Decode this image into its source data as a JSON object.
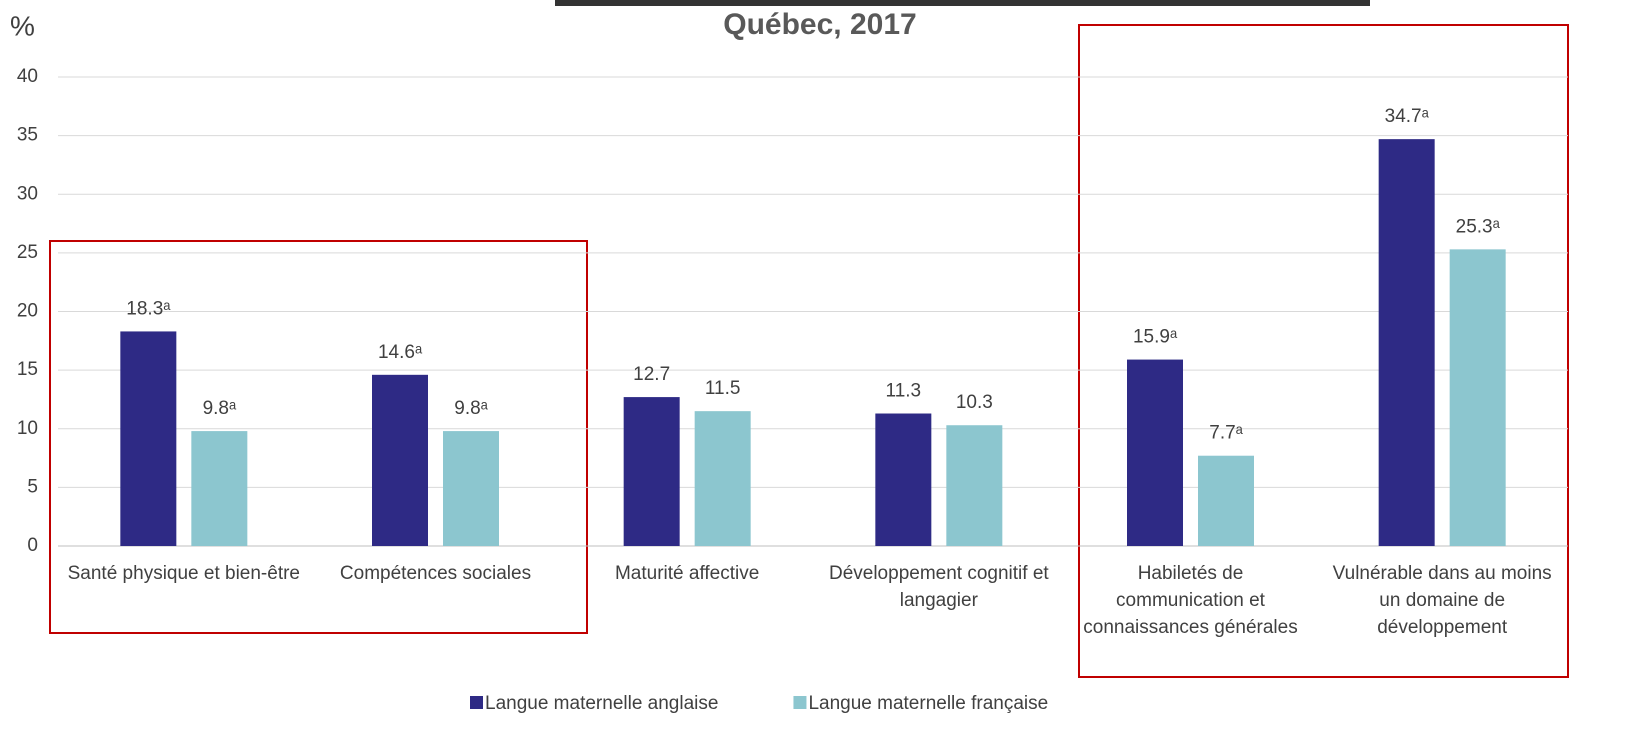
{
  "chart_data": {
    "type": "bar",
    "title": "Québec, 2017",
    "ylabel": "%",
    "categories": [
      "Santé physique et bien-être",
      "Compétences sociales",
      "Maturité affective",
      "Développement cognitif et langagier",
      "Habiletés de communication et connaissances générales",
      "Vulnérable dans au moins un domaine de développement"
    ],
    "series": [
      {
        "name": "Langue maternelle anglaise",
        "color": "#2e2a85",
        "values": [
          18.3,
          14.6,
          12.7,
          11.3,
          15.9,
          34.7
        ],
        "value_labels": [
          "18.3ᵃ",
          "14.6ᵃ",
          null,
          null,
          "15.9ᵃ",
          "34.7ᵃ"
        ]
      },
      {
        "name": "Langue maternelle française",
        "color": "#8cc6cf",
        "values": [
          9.8,
          9.8,
          11.5,
          10.3,
          7.7,
          25.3
        ],
        "value_labels": [
          "9.8ᵃ",
          "9.8ᵃ",
          null,
          null,
          "7.7ᵃ",
          "25.3ᵃ"
        ]
      }
    ],
    "ylim": [
      0,
      40
    ],
    "yticks": [
      0,
      5,
      10,
      15,
      20,
      25,
      30,
      35,
      40
    ],
    "grid": true,
    "legend": "bottom"
  }
}
